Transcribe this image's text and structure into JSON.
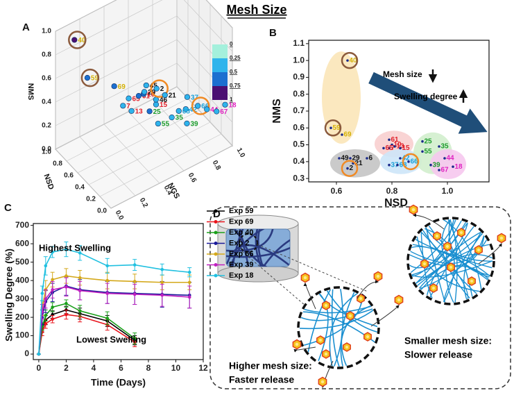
{
  "title": "Mesh Size",
  "chart_data": [
    {
      "type": "scatter3d",
      "panel": "A",
      "x_label": "NSD",
      "y_label": "NGS",
      "z_label": "NMS",
      "xlim": [
        0,
        1
      ],
      "ylim": [
        0,
        1
      ],
      "zlim": [
        0,
        1
      ],
      "xticks": [
        {
          "value": 0,
          "label": "0.0"
        },
        0.2,
        0.4,
        0.6,
        0.8,
        {
          "value": 1,
          "label": "1.0"
        }
      ],
      "yticks": [
        {
          "value": 0,
          "label": "0.0"
        },
        0.2,
        0.4,
        0.6,
        0.8,
        {
          "value": 1,
          "label": "1.0"
        }
      ],
      "zticks": [
        {
          "value": 0,
          "label": "0.0"
        },
        0.2,
        0.4,
        0.6,
        0.8,
        {
          "value": 1,
          "label": "1.0"
        }
      ],
      "colorbar": {
        "ticks": [
          0,
          0.25,
          0.5,
          0.75,
          1
        ],
        "colors": [
          "#a4f0dc",
          "#2fb4ec",
          "#1c6fd0",
          "#4b0f72"
        ]
      },
      "points": [
        {
          "label": "40",
          "label_color": "#d4b106",
          "x": 0.79,
          "y": 0.06,
          "z": 1.0,
          "circle_color": "#8b5a3c"
        },
        {
          "label": "59",
          "label_color": "#d4b106",
          "x": 0.82,
          "y": 0.18,
          "z": 0.6,
          "circle_color": "#8b5a3c"
        },
        {
          "label": "69",
          "label_color": "#d4b106",
          "x": 0.62,
          "y": 0.31,
          "z": 0.56
        },
        {
          "label": "65",
          "label_color": "#e0202a",
          "x": 0.49,
          "y": 0.37,
          "z": 0.49
        },
        {
          "label": "61",
          "label_color": "#e0202a",
          "x": 0.42,
          "y": 0.42,
          "z": 0.52
        },
        {
          "label": "10",
          "label_color": "#e0202a",
          "x": 0.44,
          "y": 0.47,
          "z": 0.5
        },
        {
          "label": "7",
          "label_color": "#e0202a",
          "x": 0.44,
          "y": 0.3,
          "z": 0.49
        },
        {
          "label": "13",
          "label_color": "#e0202a",
          "x": 0.33,
          "y": 0.32,
          "z": 0.49
        },
        {
          "label": "15",
          "label_color": "#e0202a",
          "x": 0.26,
          "y": 0.49,
          "z": 0.49
        },
        {
          "label": "45",
          "label_color": "#111111",
          "x": 0.59,
          "y": 0.56,
          "z": 0.45
        },
        {
          "label": "29",
          "label_color": "#111111",
          "x": 0.58,
          "y": 0.54,
          "z": 0.41
        },
        {
          "label": "46",
          "label_color": "#111111",
          "x": 0.37,
          "y": 0.54,
          "z": 0.45
        },
        {
          "label": "2",
          "label_color": "#111111",
          "x": 0.6,
          "y": 0.65,
          "z": 0.37,
          "circle_color": "#f08a24"
        },
        {
          "label": "21",
          "label_color": "#111111",
          "x": 0.45,
          "y": 0.65,
          "z": 0.39
        },
        {
          "label": "25",
          "label_color": "#1a9a2a",
          "x": 0.18,
          "y": 0.4,
          "z": 0.52
        },
        {
          "label": "37",
          "label_color": "#1aa0d8",
          "x": 0.31,
          "y": 0.77,
          "z": 0.38
        },
        {
          "label": "42",
          "label_color": "#1aa0d8",
          "x": 0.14,
          "y": 0.68,
          "z": 0.41
        },
        {
          "label": "68",
          "label_color": "#1aa0d8",
          "x": 0.2,
          "y": 0.65,
          "z": 0.38
        },
        {
          "label": "66",
          "label_color": "#1aa0d8",
          "x": 0.12,
          "y": 0.77,
          "z": 0.4,
          "circle_color": "#f08a24"
        },
        {
          "label": "55",
          "label_color": "#1a9a2a",
          "x": 0.07,
          "y": 0.42,
          "z": 0.46
        },
        {
          "label": "35",
          "label_color": "#1a9a2a",
          "x": 0.02,
          "y": 0.51,
          "z": 0.49
        },
        {
          "label": "39",
          "label_color": "#1a9a2a",
          "x": 0.01,
          "y": 0.63,
          "z": 0.38
        },
        {
          "label": "44",
          "label_color": "#e020c0",
          "x": 0,
          "y": 0.79,
          "z": 0.42
        },
        {
          "label": "67",
          "label_color": "#e020c0",
          "x": 0,
          "y": 0.87,
          "z": 0.36
        },
        {
          "label": "18",
          "label_color": "#e020c0",
          "x": 0,
          "y": 0.94,
          "z": 0.38
        }
      ]
    },
    {
      "type": "scatter",
      "panel": "B",
      "x_label": "NSD",
      "y_label": "NMS",
      "xlim": [
        0.5,
        1.15
      ],
      "ylim": [
        0.28,
        1.12
      ],
      "xticks": [
        0.6,
        0.8,
        {
          "value": 1,
          "label": "1.0"
        }
      ],
      "yticks": [
        0.3,
        0.4,
        0.5,
        0.6,
        0.7,
        0.8,
        0.9,
        {
          "value": 1,
          "label": "1.0"
        },
        1.1
      ],
      "dot_color": "#1a2a8a",
      "arrow_color": "#1f4e79",
      "annotations": [
        "Mesh size",
        "Swelling degree"
      ],
      "groups": [
        {
          "color": "#fbe6b8",
          "label_color": "#d4b106",
          "points": [
            {
              "label": "40",
              "x": 0.64,
              "y": 1.0,
              "circle_color": "#8b5a3c"
            },
            {
              "label": "59",
              "x": 0.58,
              "y": 0.6,
              "circle_color": "#8b5a3c"
            },
            {
              "label": "69",
              "x": 0.62,
              "y": 0.56
            }
          ]
        },
        {
          "color": "#f8cfcf",
          "label_color": "#e0202a",
          "points": [
            {
              "label": "61",
              "x": 0.79,
              "y": 0.53
            },
            {
              "label": "10",
              "x": 0.8,
              "y": 0.5
            },
            {
              "label": "7",
              "x": 0.79,
              "y": 0.48
            },
            {
              "label": "65",
              "x": 0.77,
              "y": 0.48
            },
            {
              "label": "13",
              "x": 0.81,
              "y": 0.49
            },
            {
              "label": "15",
              "x": 0.83,
              "y": 0.48
            }
          ]
        },
        {
          "color": "#c4c4c4",
          "label_color": "#111111",
          "points": [
            {
              "label": "49",
              "x": 0.61,
              "y": 0.42
            },
            {
              "label": "29",
              "x": 0.65,
              "y": 0.42
            },
            {
              "label": "21",
              "x": 0.66,
              "y": 0.39
            },
            {
              "label": "6",
              "x": 0.71,
              "y": 0.42
            },
            {
              "label": "2",
              "x": 0.64,
              "y": 0.36,
              "circle_color": "#f08a24"
            }
          ]
        },
        {
          "color": "#cde6f8",
          "label_color": "#1aa0d8",
          "points": [
            {
              "label": "42",
              "x": 0.83,
              "y": 0.42
            },
            {
              "label": "37",
              "x": 0.79,
              "y": 0.38
            },
            {
              "label": "68",
              "x": 0.82,
              "y": 0.38
            },
            {
              "label": "66",
              "x": 0.86,
              "y": 0.4,
              "circle_color": "#f08a24"
            }
          ]
        },
        {
          "color": "#d2eecd",
          "label_color": "#1a9a2a",
          "points": [
            {
              "label": "25",
              "x": 0.91,
              "y": 0.52
            },
            {
              "label": "55",
              "x": 0.91,
              "y": 0.46
            },
            {
              "label": "35",
              "x": 0.97,
              "y": 0.49
            },
            {
              "label": "39",
              "x": 0.94,
              "y": 0.38
            }
          ]
        },
        {
          "color": "#f6c8ee",
          "label_color": "#e020c0",
          "points": [
            {
              "label": "44",
              "x": 0.99,
              "y": 0.42
            },
            {
              "label": "67",
              "x": 0.97,
              "y": 0.35
            },
            {
              "label": "18",
              "x": 1.02,
              "y": 0.37
            }
          ]
        }
      ]
    },
    {
      "type": "line",
      "panel": "C",
      "x_label": "Time (Days)",
      "y_label": "Swelling Degree (%)",
      "xlim": [
        -0.4,
        12
      ],
      "ylim": [
        -30,
        710
      ],
      "xticks": [
        0,
        2,
        4,
        6,
        8,
        10,
        12
      ],
      "yticks": [
        0,
        100,
        200,
        300,
        400,
        500,
        600,
        700
      ],
      "legend": "right-outside",
      "annotations": [
        "Highest Swelling",
        "Lowest Swelling"
      ],
      "series": [
        {
          "name": "Exp 59",
          "color": "#000000",
          "x": [
            0,
            0.25,
            0.5,
            1,
            2,
            3,
            5,
            7
          ],
          "values": [
            0,
            140,
            185,
            215,
            240,
            220,
            180,
            75
          ],
          "errors": [
            0,
            20,
            25,
            20,
            20,
            30,
            30,
            25
          ]
        },
        {
          "name": "Exp 69",
          "color": "#e8141c",
          "x": [
            0,
            0.25,
            0.5,
            1,
            2,
            3,
            5,
            7
          ],
          "values": [
            0,
            120,
            165,
            190,
            215,
            205,
            160,
            65
          ],
          "errors": [
            0,
            20,
            25,
            20,
            25,
            30,
            30,
            25
          ]
        },
        {
          "name": "Exp 40",
          "color": "#1aa01a",
          "x": [
            0,
            0.25,
            0.5,
            1,
            2,
            3,
            5,
            7
          ],
          "values": [
            0,
            150,
            210,
            255,
            275,
            235,
            195,
            85
          ],
          "errors": [
            0,
            20,
            30,
            25,
            20,
            30,
            35,
            30
          ]
        },
        {
          "name": "Exp 2",
          "color": "#1a1a9a",
          "x": [
            0,
            0.25,
            0.5,
            1,
            2,
            3,
            5,
            7,
            9,
            11
          ],
          "values": [
            0,
            200,
            285,
            335,
            370,
            350,
            335,
            330,
            325,
            320
          ],
          "errors": [
            0,
            40,
            60,
            50,
            50,
            55,
            60,
            60,
            70,
            70
          ]
        },
        {
          "name": "Exp 66",
          "color": "#d4a81a",
          "x": [
            0,
            0.25,
            0.5,
            1,
            2,
            3,
            5,
            7,
            9,
            11
          ],
          "values": [
            0,
            250,
            350,
            405,
            425,
            415,
            400,
            395,
            390,
            390
          ],
          "errors": [
            0,
            40,
            50,
            40,
            40,
            40,
            45,
            40,
            40,
            40
          ]
        },
        {
          "name": "Exp 39",
          "color": "#c020c0",
          "x": [
            0,
            0.25,
            0.5,
            1,
            2,
            3,
            5,
            7,
            9,
            11
          ],
          "values": [
            0,
            230,
            300,
            350,
            365,
            345,
            330,
            325,
            320,
            310
          ],
          "errors": [
            0,
            40,
            50,
            45,
            50,
            50,
            55,
            55,
            60,
            60
          ]
        },
        {
          "name": "Exp 18",
          "color": "#20c0e0",
          "x": [
            0,
            0.25,
            0.5,
            1,
            2,
            3,
            5,
            7,
            9,
            11
          ],
          "values": [
            0,
            330,
            480,
            555,
            570,
            550,
            480,
            485,
            460,
            445
          ],
          "errors": [
            0,
            40,
            50,
            30,
            40,
            40,
            40,
            30,
            30,
            25
          ]
        }
      ]
    }
  ],
  "panel_d": {
    "panel": "D",
    "captions": [
      [
        "Higher mesh size:",
        "Faster release"
      ],
      [
        "Smaller mesh size:",
        "Slower release"
      ]
    ]
  }
}
